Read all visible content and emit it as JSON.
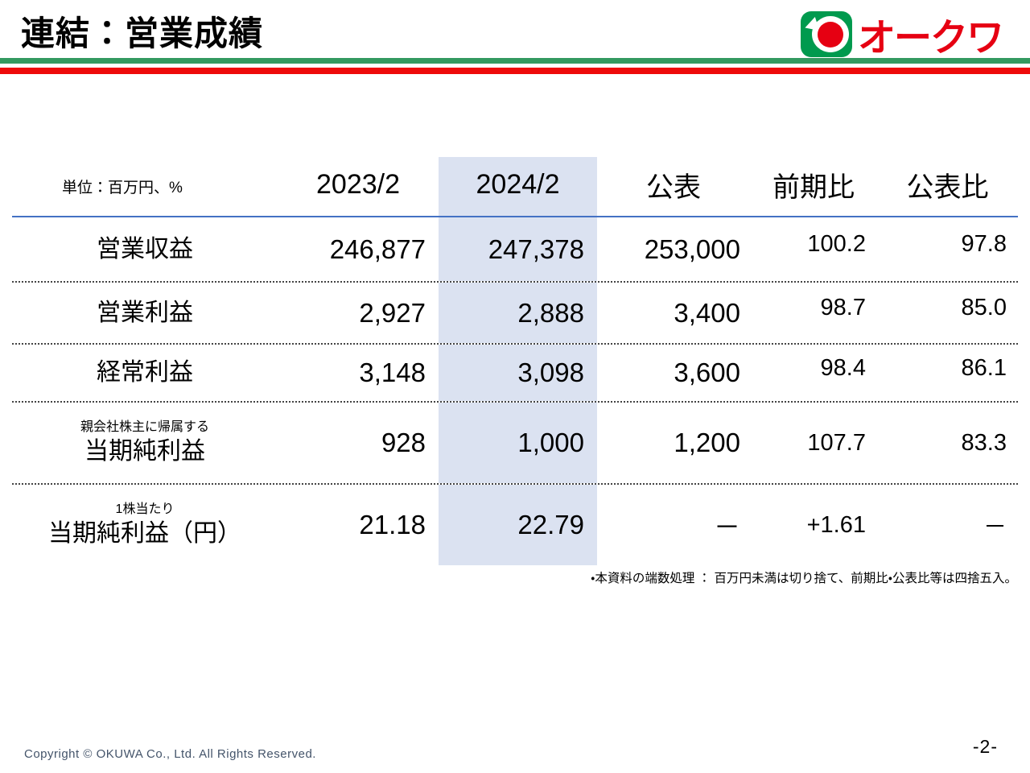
{
  "slide": {
    "title": "連結：営業成績",
    "logo_text": "オークワ",
    "footnote": "・本資料の端数処理 ： 百万円未満は切り捨て、前期比・公表比等は四捨五入。",
    "copyright": "Copyright © OKUWA Co., Ltd. All Rights Reserved.",
    "page_number": "-2-"
  },
  "table": {
    "unit_label": "単位：百万円、%",
    "columns": [
      "2023/2",
      "2024/2",
      "公表",
      "前期比",
      "公表比"
    ],
    "highlight_column": "2024/2",
    "rows": [
      {
        "label": "営業収益",
        "values": [
          "246,877",
          "247,378",
          "253,000",
          "100.2",
          "97.8"
        ]
      },
      {
        "label": "営業利益",
        "values": [
          "2,927",
          "2,888",
          "3,400",
          "98.7",
          "85.0"
        ]
      },
      {
        "label": "経常利益",
        "values": [
          "3,148",
          "3,098",
          "3,600",
          "98.4",
          "86.1"
        ]
      },
      {
        "label_small": "親会社株主に帰属する",
        "label": "当期純利益",
        "values": [
          "928",
          "1,000",
          "1,200",
          "107.7",
          "83.3"
        ]
      },
      {
        "label_small": "1株当たり",
        "label": "当期純利益（円）",
        "values": [
          "21.18",
          "22.79",
          "－",
          "+1.61",
          "－"
        ]
      }
    ]
  },
  "colors": {
    "brand_red": "#e60012",
    "brand_green": "#009a4e",
    "rule_green": "#339960",
    "rule_red": "#ee0a0a",
    "header_line_blue": "#4472c4",
    "highlight_column_bg": "#dbe2f1",
    "copyright_text": "#44546a"
  }
}
